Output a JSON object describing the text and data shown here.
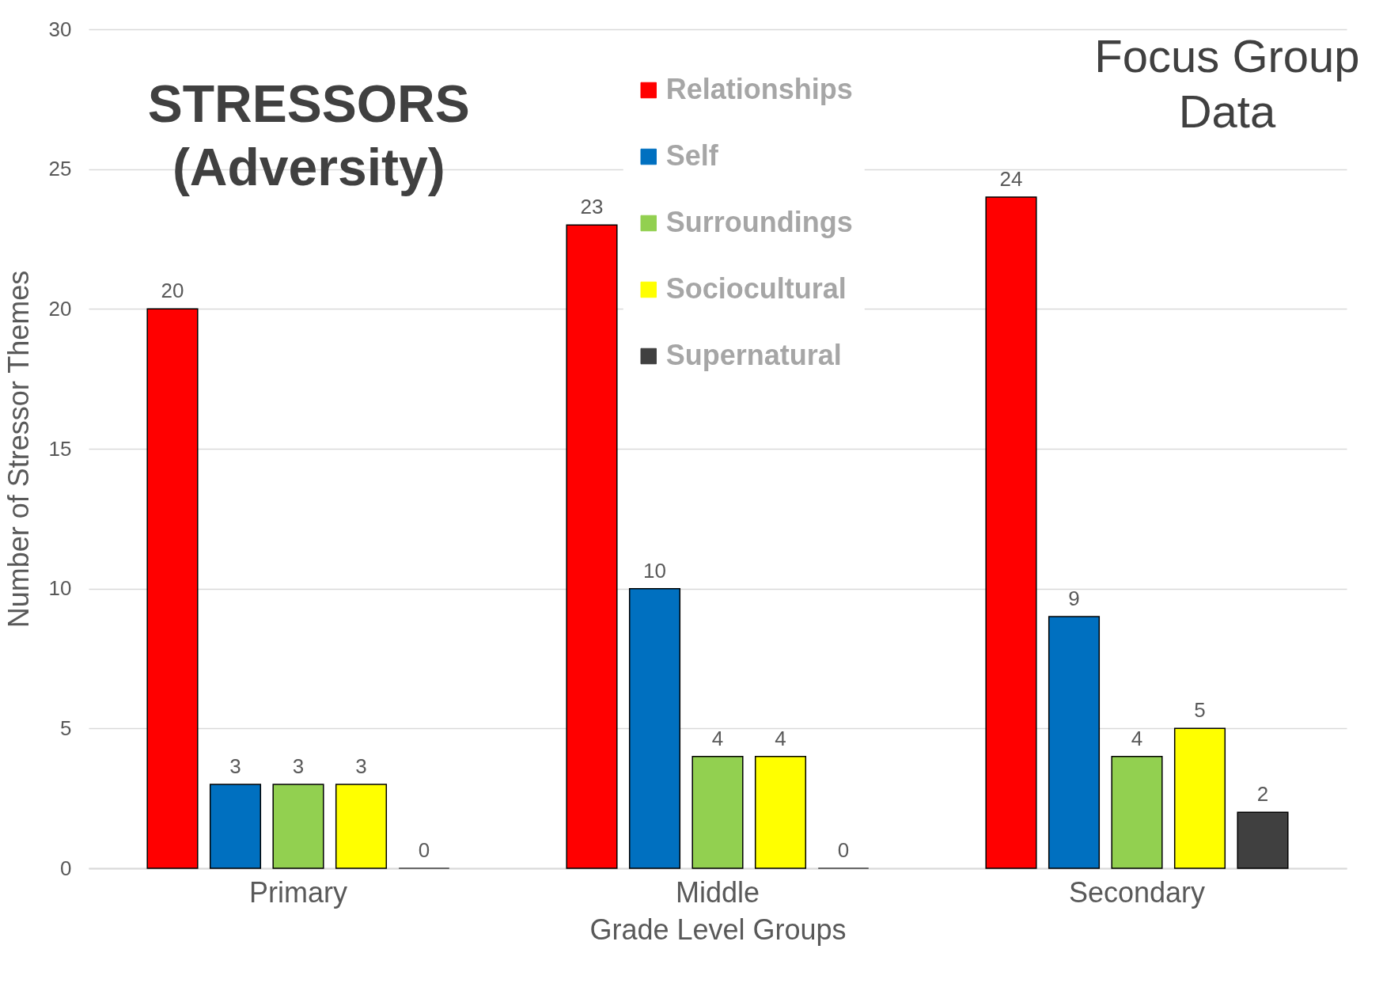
{
  "chart_data": {
    "type": "bar",
    "title": "STRESSORS (Adversity)",
    "annotations": [
      "Focus Group Data"
    ],
    "xlabel": "Grade Level Groups",
    "ylabel": "Number of Stressor Themes",
    "categories": [
      "Primary",
      "Middle",
      "Secondary"
    ],
    "series": [
      {
        "name": "Relationships",
        "color": "#ff0000",
        "values": [
          20,
          23,
          24
        ]
      },
      {
        "name": "Self",
        "color": "#0070c0",
        "values": [
          3,
          10,
          9
        ]
      },
      {
        "name": "Surroundings",
        "color": "#92d050",
        "values": [
          3,
          4,
          4
        ]
      },
      {
        "name": "Sociocultural",
        "color": "#ffff00",
        "values": [
          3,
          4,
          5
        ]
      },
      {
        "name": "Supernatural",
        "color": "#404040",
        "values": [
          0,
          0,
          2
        ]
      }
    ],
    "ylim": [
      0,
      30
    ],
    "yticks": [
      0,
      5,
      10,
      15,
      20,
      25,
      30
    ],
    "grid": "y",
    "legend": "top",
    "data_labels": true
  }
}
